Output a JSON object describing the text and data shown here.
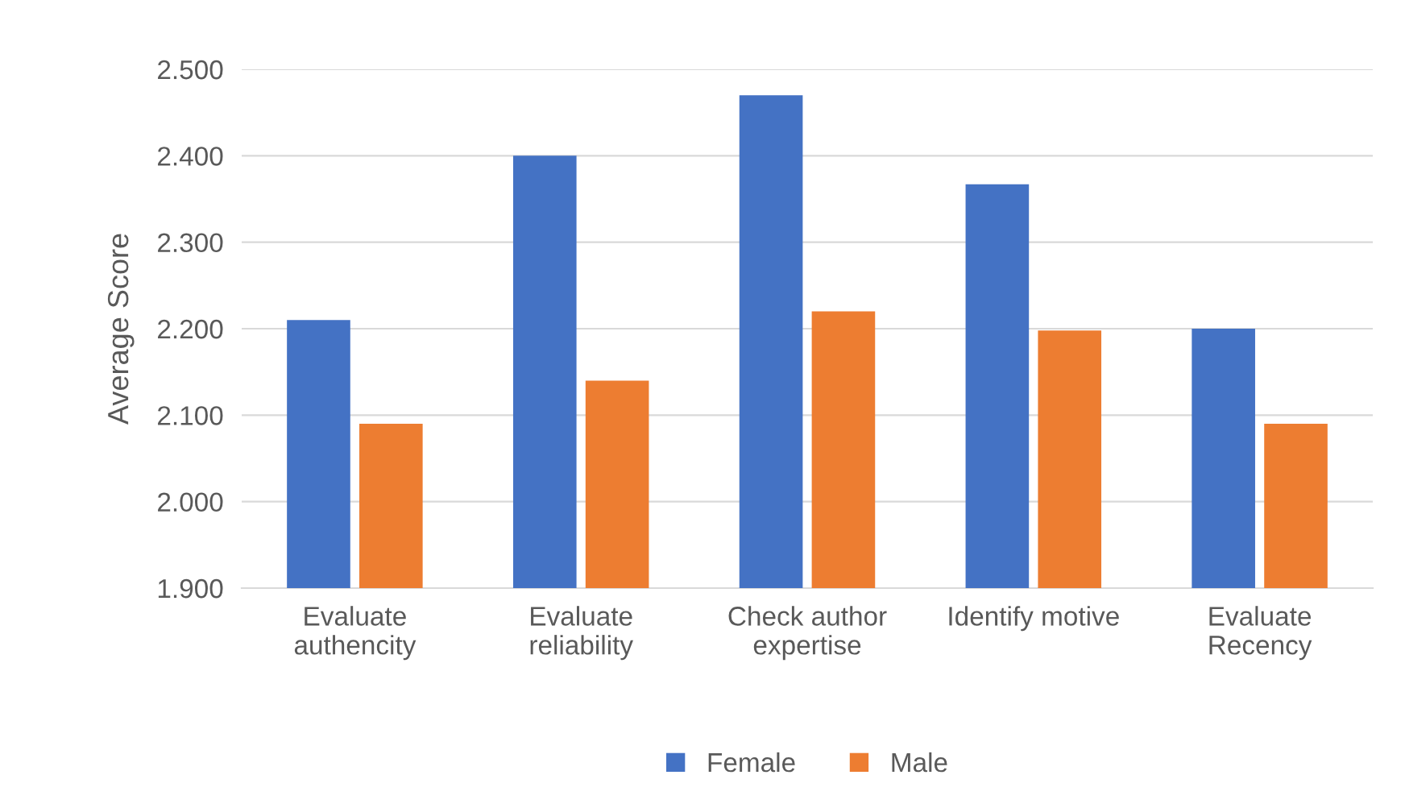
{
  "chart_data": {
    "type": "bar",
    "ylabel": "Average Score",
    "categories": [
      "Evaluate\nauthencity",
      "Evaluate\nreliability",
      "Check author\nexpertise",
      "Identify motive",
      "Evaluate\nRecency"
    ],
    "series": [
      {
        "name": "Female",
        "color": "#4472c4",
        "values": [
          2.21,
          2.4,
          2.47,
          2.367,
          2.2
        ]
      },
      {
        "name": "Male",
        "color": "#ed7d31",
        "values": [
          2.09,
          2.14,
          2.22,
          2.198,
          2.09
        ]
      }
    ],
    "ylim": [
      1.9,
      2.5
    ],
    "yticks": [
      {
        "value": 1.9,
        "label": "1.900"
      },
      {
        "value": 2.0,
        "label": "2.000"
      },
      {
        "value": 2.1,
        "label": "2.100"
      },
      {
        "value": 2.2,
        "label": "2.200"
      },
      {
        "value": 2.3,
        "label": "2.300"
      },
      {
        "value": 2.4,
        "label": "2.400"
      },
      {
        "value": 2.5,
        "label": "2.500"
      }
    ],
    "grid": "y",
    "legend": "bottom"
  }
}
